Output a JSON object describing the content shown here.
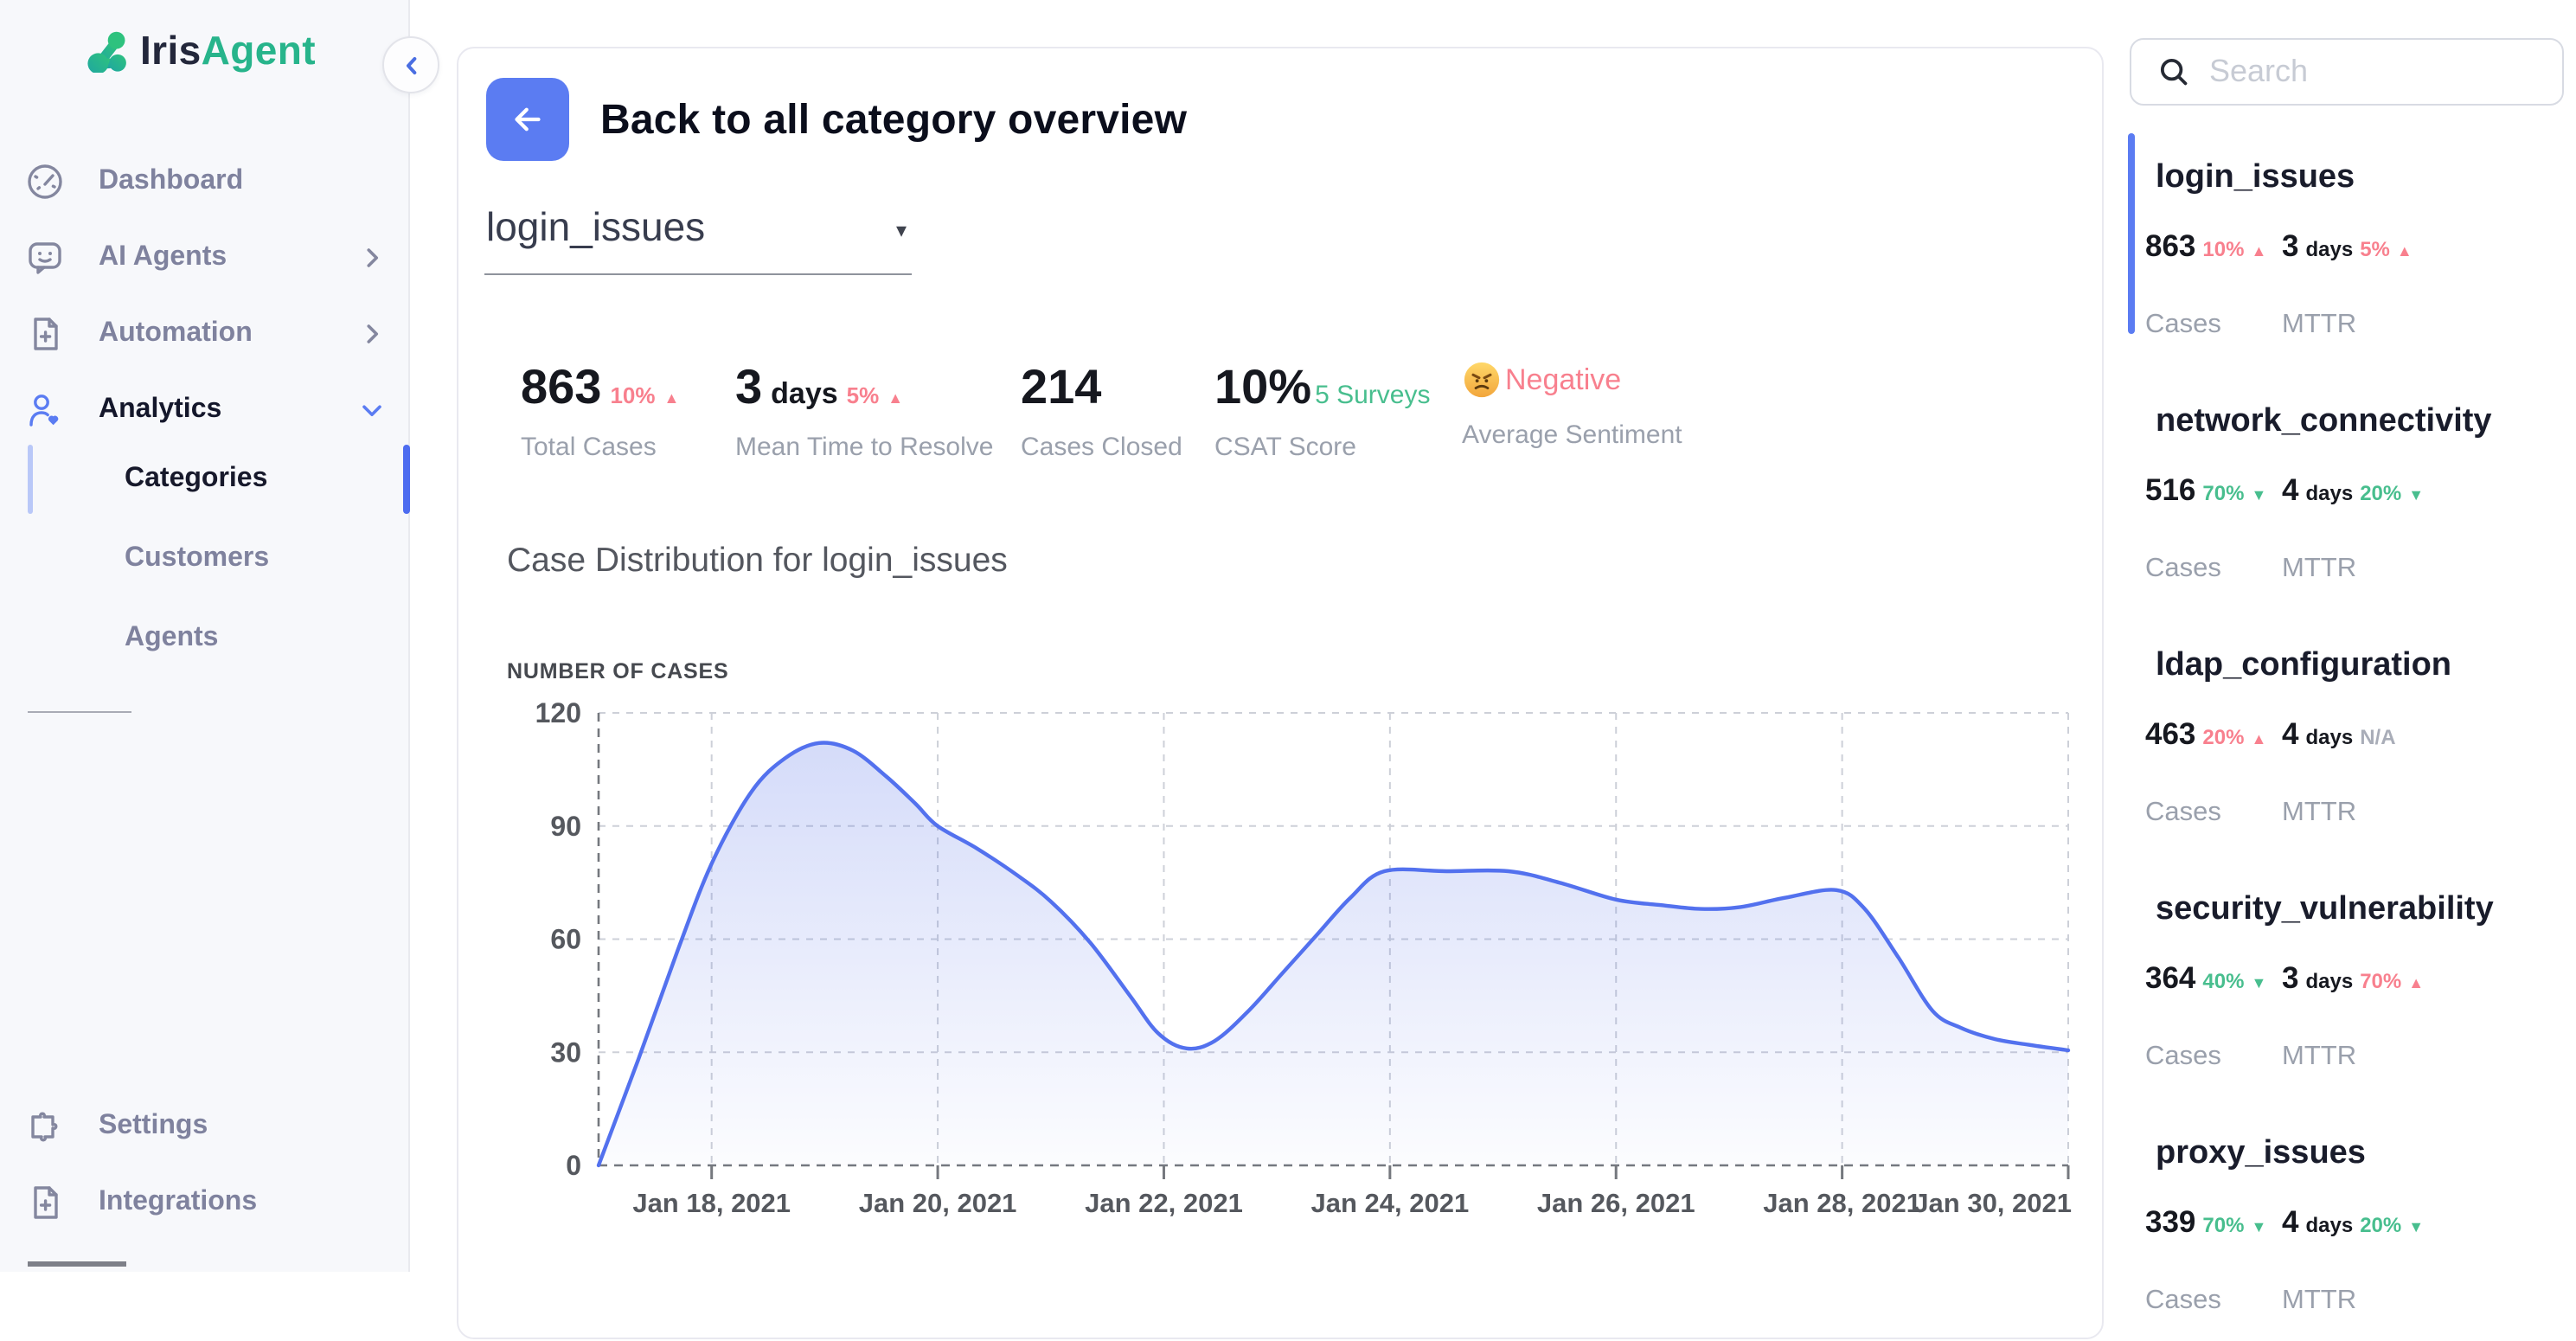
{
  "brand": {
    "name_prefix": "Iris",
    "name_suffix": "Agent"
  },
  "sidebar": {
    "items": [
      {
        "label": "Dashboard"
      },
      {
        "label": "AI Agents"
      },
      {
        "label": "Automation"
      },
      {
        "label": "Analytics"
      }
    ],
    "analytics_children": [
      {
        "label": "Categories"
      },
      {
        "label": "Customers"
      },
      {
        "label": "Agents"
      }
    ],
    "footer_items": [
      {
        "label": "Settings"
      },
      {
        "label": "Integrations"
      }
    ]
  },
  "header": {
    "back_label": "Back to all category overview"
  },
  "category_select": {
    "value": "login_issues",
    "caret": "▾"
  },
  "stats": [
    {
      "value": "863",
      "delta": "10%",
      "arrow": "▲",
      "delta_color": "#F8808E",
      "label": "Total Cases"
    },
    {
      "value": "3",
      "unit": "days",
      "delta": "5%",
      "arrow": "▲",
      "delta_color": "#F8808E",
      "label": "Mean Time to Resolve"
    },
    {
      "value": "214",
      "label": "Cases Closed"
    },
    {
      "value": "10%",
      "suffix": "5 Surveys",
      "suffix_color": "#48BE8E",
      "label": "CSAT Score"
    },
    {
      "sentiment": "Negative",
      "sentiment_color": "#F8808E",
      "label": "Average Sentiment"
    }
  ],
  "chart_section": {
    "title": "Case Distribution for login_issues"
  },
  "chart_data": {
    "type": "area",
    "title": "Case Distribution for login_issues",
    "ylabel": "NUMBER OF CASES",
    "x_range_days": [
      17,
      30
    ],
    "x_ticks": [
      {
        "day": 18,
        "label": "Jan 18, 2021"
      },
      {
        "day": 20,
        "label": "Jan 20, 2021"
      },
      {
        "day": 22,
        "label": "Jan 22, 2021"
      },
      {
        "day": 24,
        "label": "Jan 24, 2021"
      },
      {
        "day": 26,
        "label": "Jan 26, 2021"
      },
      {
        "day": 28,
        "label": "Jan 28, 2021"
      },
      {
        "day": 30,
        "label": "Jan 30, 2021"
      }
    ],
    "ylim": [
      0,
      120
    ],
    "y_ticks": [
      0,
      30,
      60,
      90,
      120
    ],
    "grid": true,
    "line_color": "#5371EE",
    "fill_color": "#5C76E8",
    "series": [
      {
        "name": "Number of Cases",
        "points": [
          [
            17,
            0
          ],
          [
            17.35,
            28
          ],
          [
            17.7,
            57
          ],
          [
            18,
            80
          ],
          [
            18.35,
            99
          ],
          [
            18.65,
            108
          ],
          [
            18.95,
            112
          ],
          [
            19.25,
            110
          ],
          [
            19.55,
            103
          ],
          [
            19.8,
            96
          ],
          [
            20,
            90
          ],
          [
            20.35,
            84
          ],
          [
            20.7,
            77
          ],
          [
            21,
            70
          ],
          [
            21.35,
            59
          ],
          [
            21.7,
            45
          ],
          [
            21.95,
            35
          ],
          [
            22.2,
            31
          ],
          [
            22.45,
            33
          ],
          [
            22.75,
            41
          ],
          [
            23.05,
            51
          ],
          [
            23.35,
            61
          ],
          [
            23.65,
            71
          ],
          [
            23.95,
            78
          ],
          [
            24.5,
            78
          ],
          [
            25.05,
            78
          ],
          [
            25.5,
            75
          ],
          [
            26,
            70.5
          ],
          [
            26.4,
            69
          ],
          [
            26.75,
            68
          ],
          [
            27.1,
            68.5
          ],
          [
            27.5,
            71
          ],
          [
            27.95,
            73
          ],
          [
            28.2,
            68
          ],
          [
            28.5,
            55
          ],
          [
            28.8,
            41
          ],
          [
            29.05,
            36.5
          ],
          [
            29.35,
            33.5
          ],
          [
            29.65,
            32
          ],
          [
            30,
            30.5
          ]
        ]
      }
    ]
  },
  "right_panel": {
    "search_placeholder": "Search",
    "cases_label": "Cases",
    "mttr_label": "MTTR",
    "items": [
      {
        "name": "login_issues",
        "cases": "863",
        "cases_delta": "10%",
        "cases_arrow": "▲",
        "cases_color": "#F8808E",
        "mttr": "3",
        "mttr_unit": "days",
        "mttr_delta": "5%",
        "mttr_arrow": "▲",
        "mttr_color": "#F8808E"
      },
      {
        "name": "network_connectivity",
        "cases": "516",
        "cases_delta": "70%",
        "cases_arrow": "▼",
        "cases_color": "#48BE8E",
        "mttr": "4",
        "mttr_unit": "days",
        "mttr_delta": "20%",
        "mttr_arrow": "▼",
        "mttr_color": "#48BE8E"
      },
      {
        "name": "ldap_configuration",
        "cases": "463",
        "cases_delta": "20%",
        "cases_arrow": "▲",
        "cases_color": "#F8808E",
        "mttr": "4",
        "mttr_unit": "days",
        "mttr_delta": "N/A",
        "mttr_arrow": "",
        "mttr_color": "#A9ADB8"
      },
      {
        "name": "security_vulnerability",
        "cases": "364",
        "cases_delta": "40%",
        "cases_arrow": "▼",
        "cases_color": "#48BE8E",
        "mttr": "3",
        "mttr_unit": "days",
        "mttr_delta": "70%",
        "mttr_arrow": "▲",
        "mttr_color": "#F8808E"
      },
      {
        "name": "proxy_issues",
        "cases": "339",
        "cases_delta": "70%",
        "cases_arrow": "▼",
        "cases_color": "#48BE8E",
        "mttr": "4",
        "mttr_unit": "days",
        "mttr_delta": "20%",
        "mttr_arrow": "▼",
        "mttr_color": "#48BE8E"
      }
    ]
  }
}
